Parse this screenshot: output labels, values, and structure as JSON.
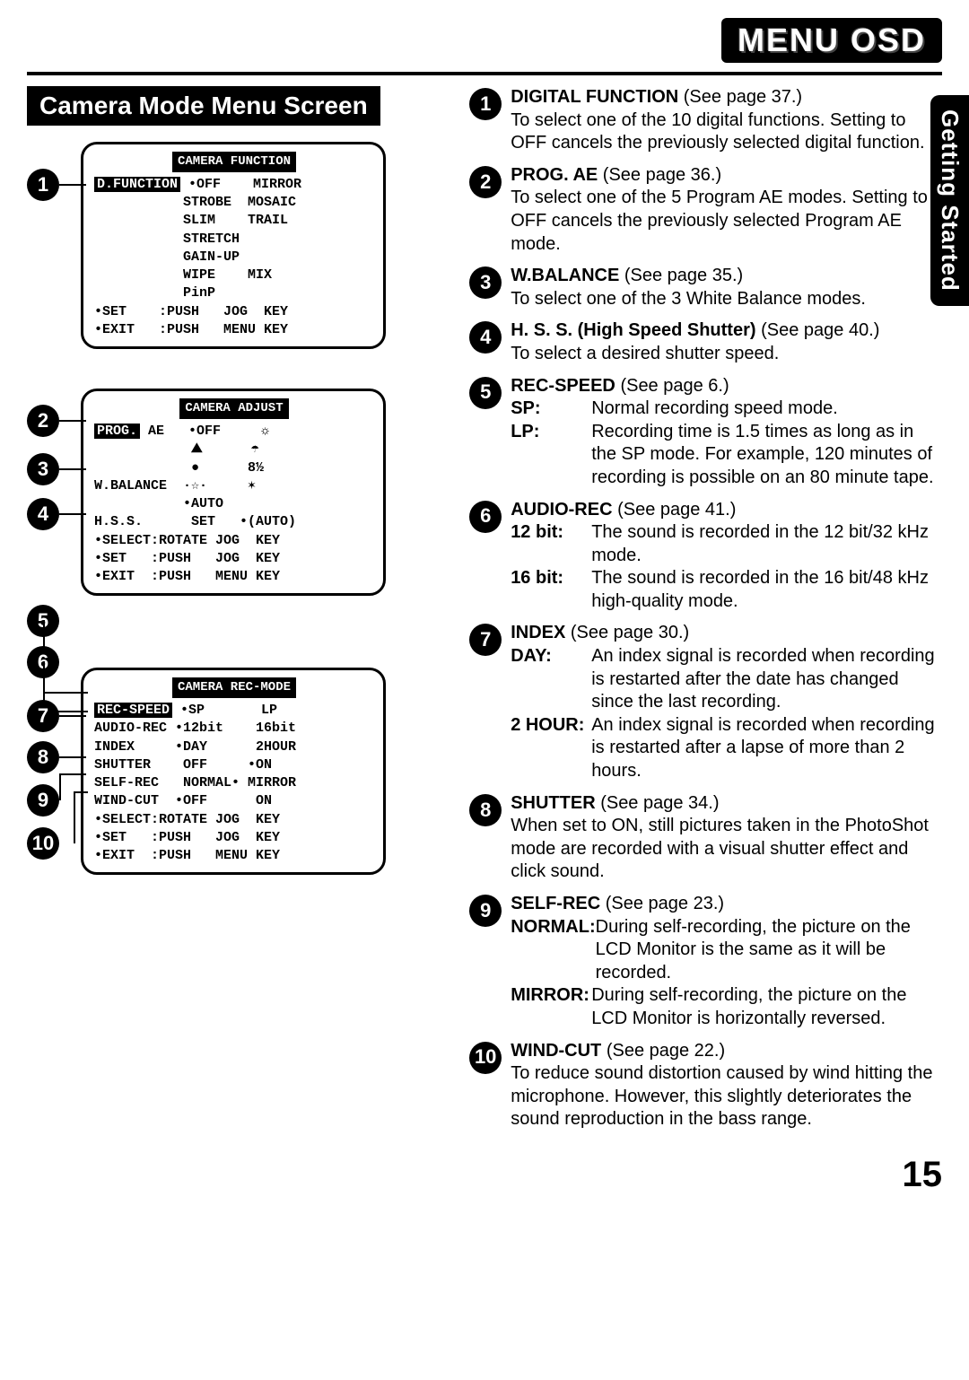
{
  "header": {
    "logo": "MENU OSD"
  },
  "section_title": "Camera Mode Menu Screen",
  "side_tab": "Getting Started",
  "page_number": "15",
  "screens": {
    "func": {
      "title": "CAMERA FUNCTION",
      "rows": [
        "D.FUNCTION •OFF    MIRROR",
        "           STROBE  MOSAIC",
        "           SLIM    TRAIL",
        "           STRETCH",
        "           GAIN-UP",
        "           WIPE    MIX",
        "           PinP",
        "•SET    :PUSH   JOG  KEY",
        "•EXIT   :PUSH   MENU KEY"
      ]
    },
    "adjust": {
      "title": "CAMERA ADJUST",
      "rows": [
        "PROG. AE   •OFF     ☼",
        "            ⛰      ☂",
        "            ●      8½",
        "W.BALANCE  ·☆·     ✶",
        "           •AUTO",
        "H.S.S.      SET   •(AUTO)",
        "•SELECT:ROTATE JOG  KEY",
        "•SET   :PUSH   JOG  KEY",
        "•EXIT  :PUSH   MENU KEY"
      ]
    },
    "rec": {
      "title": "CAMERA REC-MODE",
      "rows": [
        "REC-SPEED •SP       LP",
        "AUDIO-REC •12bit    16bit",
        "INDEX     •DAY      2HOUR",
        "SHUTTER    OFF     •ON",
        "SELF-REC   NORMAL• MIRROR",
        "WIND-CUT  •OFF      ON",
        "•SELECT:ROTATE JOG  KEY",
        "•SET   :PUSH   JOG  KEY",
        "•EXIT  :PUSH   MENU KEY"
      ]
    }
  },
  "items": [
    {
      "n": "1",
      "title": "DIGITAL FUNCTION",
      "ref": "(See page 37.)",
      "body": "To select one of the 10 digital functions. Setting to OFF cancels the previously selected digital function."
    },
    {
      "n": "2",
      "title": "PROG. AE",
      "ref": "(See page 36.)",
      "body": "To select one of the 5 Program AE modes. Setting to OFF cancels the previously selected Program AE mode."
    },
    {
      "n": "3",
      "title": "W.BALANCE",
      "ref": "(See page 35.)",
      "body": "To select one of the 3 White Balance modes."
    },
    {
      "n": "4",
      "title": "H. S. S. (High Speed Shutter)",
      "ref": "(See page 40.)",
      "body": "To select a desired shutter speed."
    },
    {
      "n": "5",
      "title": "REC-SPEED",
      "ref": "(See page 6.)",
      "subs": [
        {
          "k": "SP:",
          "v": "Normal recording speed mode."
        },
        {
          "k": "LP:",
          "v": "Recording time is 1.5 times as long as in the SP mode. For example, 120 minutes of recording is possible on an 80 minute tape."
        }
      ]
    },
    {
      "n": "6",
      "title": "AUDIO-REC",
      "ref": "(See page 41.)",
      "subs": [
        {
          "k": "12 bit:",
          "v": "The sound is recorded in the 12 bit/32 kHz mode."
        },
        {
          "k": "16 bit:",
          "v": "The sound is recorded in the 16 bit/48 kHz high-quality mode."
        }
      ]
    },
    {
      "n": "7",
      "title": "INDEX",
      "ref": "(See page 30.)",
      "subs": [
        {
          "k": "DAY:",
          "v": "An index signal is recorded when recording is restarted after the date has changed since the last recording."
        },
        {
          "k": "2 HOUR:",
          "v": "An index signal is recorded when recording is restarted after a lapse of more than 2 hours."
        }
      ]
    },
    {
      "n": "8",
      "title": "SHUTTER",
      "ref": "(See page 34.)",
      "body": "When set to ON, still pictures taken in the PhotoShot mode are recorded with a visual shutter effect and click sound."
    },
    {
      "n": "9",
      "title": "SELF-REC",
      "ref": "(See page 23.)",
      "subs": [
        {
          "k": "NORMAL:",
          "v": "During self-recording, the picture on the LCD Monitor is the same as it will be recorded."
        },
        {
          "k": "MIRROR:",
          "v": "During self-recording, the picture on the LCD Monitor is horizontally reversed."
        }
      ]
    },
    {
      "n": "10",
      "title": "WIND-CUT",
      "ref": "(See page 22.)",
      "body": "To reduce sound distortion caused by wind hitting the microphone. However, this slightly deteriorates the sound reproduction in the bass range."
    }
  ]
}
